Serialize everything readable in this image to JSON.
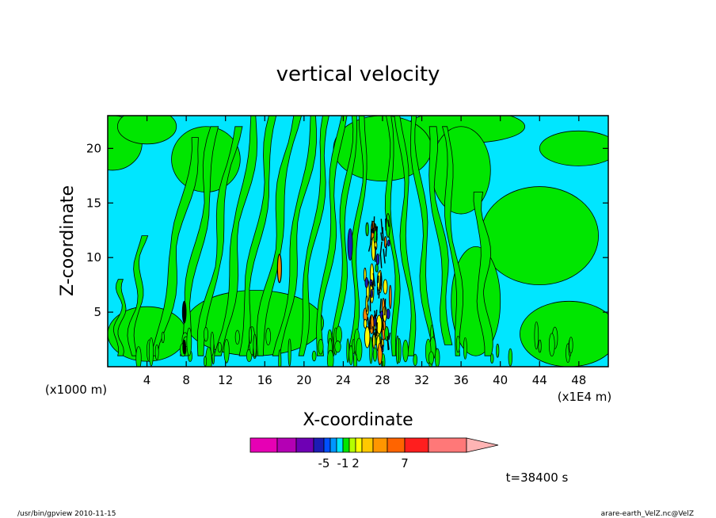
{
  "chart_data": {
    "type": "heatmap",
    "title": "vertical velocity",
    "xlabel": "X-coordinate",
    "ylabel": "Z-coordinate",
    "x_unit_left": "(x1000 m)",
    "x_unit_right": "(x1E4 m)",
    "xlim": [
      0,
      51
    ],
    "ylim": [
      0,
      23
    ],
    "x_ticks": [
      "4",
      "8",
      "12",
      "16",
      "20",
      "24",
      "28",
      "32",
      "36",
      "40",
      "44",
      "48"
    ],
    "x_tick_values": [
      4,
      8,
      12,
      16,
      20,
      24,
      28,
      32,
      36,
      40,
      44,
      48
    ],
    "y_ticks": [
      "5",
      "10",
      "15",
      "20"
    ],
    "y_tick_values": [
      5,
      10,
      15,
      20
    ],
    "background_level_color": "#00e6ff",
    "fill_levels": {
      "band_light": "#00e600",
      "up_weak": "#ffff00",
      "up_strong": "#ff8c00",
      "down_strong": "#1c1cb4",
      "contour": "#000000"
    },
    "colorbar": {
      "colors": [
        "#e600b4",
        "#b400b4",
        "#6e00b4",
        "#1c1cb4",
        "#0050ff",
        "#0096ff",
        "#00e6ff",
        "#00e600",
        "#b4ff00",
        "#ffff00",
        "#ffc800",
        "#ff9600",
        "#ff6400",
        "#ff1e1e",
        "#ff7878"
      ],
      "arrow_color": "#ffb4b4",
      "labels": [
        "-5",
        "-1",
        "2",
        "7"
      ],
      "label_index": [
        3,
        6,
        8,
        12
      ]
    },
    "time_label": "t=38400 s"
  },
  "footer": {
    "left": "/usr/bin/gpview   2010-11-15",
    "right": "arare-earth_VelZ.nc@VelZ"
  }
}
